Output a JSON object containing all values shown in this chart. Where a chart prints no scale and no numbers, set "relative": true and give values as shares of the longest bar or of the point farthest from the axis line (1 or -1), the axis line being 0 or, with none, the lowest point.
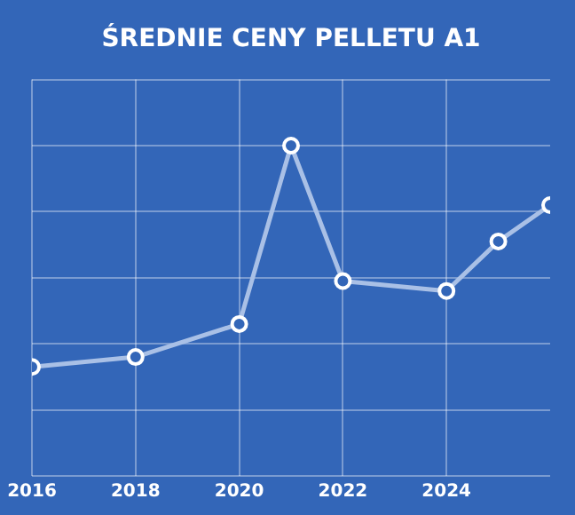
{
  "chart_data": {
    "type": "line",
    "title": "ŚREDNIE CENY PELLETU A1",
    "relative": true,
    "x": [
      2016,
      2018,
      2020,
      2021,
      2022,
      2024,
      2025,
      2026
    ],
    "series": [
      {
        "color": "#a9c0e6",
        "values": [
          0.33,
          0.36,
          0.46,
          1,
          0.59,
          0.56,
          0.71,
          0.82
        ]
      }
    ],
    "xlim": [
      2016,
      2026
    ],
    "xticks": [
      2016,
      2018,
      2020,
      2022,
      2024
    ],
    "grid": true,
    "marker": "circle",
    "line_style": "solid"
  }
}
